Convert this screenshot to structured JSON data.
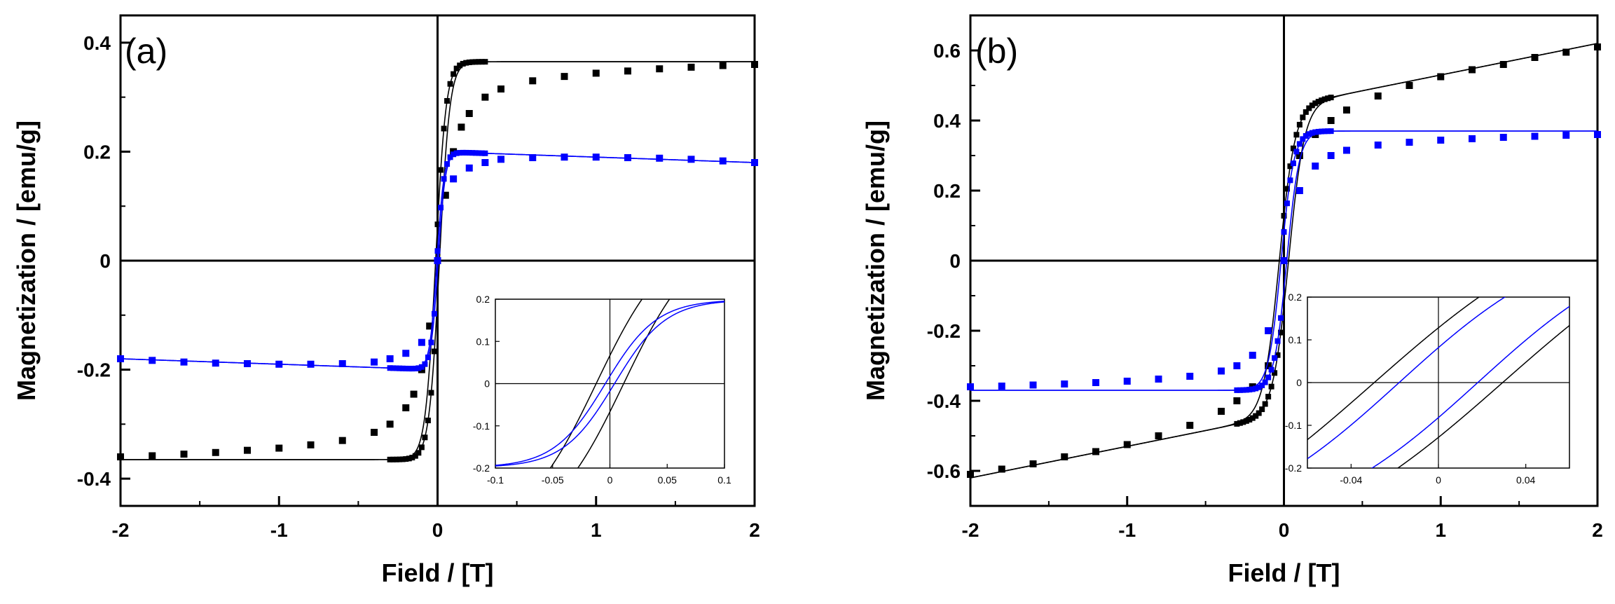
{
  "figure": {
    "panels": [
      {
        "id": "a",
        "label": "(a)"
      },
      {
        "id": "b",
        "label": "(b)"
      }
    ]
  },
  "colors": {
    "series1": "#000000",
    "series2": "#0000ff"
  },
  "chart_data": [
    {
      "panel": "(a)",
      "type": "line",
      "title": "",
      "xlabel": "Field / [T]",
      "ylabel": "Magnetization / [emu/g]",
      "xlim": [
        -2,
        2
      ],
      "ylim": [
        -0.45,
        0.45
      ],
      "xticks": [
        -2,
        -1,
        0,
        1,
        2
      ],
      "xtick_labels": [
        "-2",
        "-1",
        "0",
        "1",
        "2"
      ],
      "yticks": [
        -0.4,
        -0.2,
        0,
        0.2,
        0.4
      ],
      "ytick_labels": [
        "-0.4",
        "-0.2",
        "0",
        "0.2",
        "0.4"
      ],
      "series": [
        {
          "name": "black",
          "color": "#000000",
          "model": {
            "Ms": 0.365,
            "a": 0.065,
            "coercivity": 0.012
          },
          "x": [
            -2,
            -1.8,
            -1.6,
            -1.4,
            -1.2,
            -1.0,
            -0.8,
            -0.6,
            -0.4,
            -0.3,
            -0.2,
            -0.15,
            -0.1,
            -0.05,
            0,
            0.05,
            0.1,
            0.15,
            0.2,
            0.3,
            0.4,
            0.6,
            0.8,
            1.0,
            1.2,
            1.4,
            1.6,
            1.8,
            2.0
          ],
          "y": [
            -0.36,
            -0.358,
            -0.355,
            -0.352,
            -0.348,
            -0.344,
            -0.338,
            -0.33,
            -0.315,
            -0.3,
            -0.27,
            -0.245,
            -0.2,
            -0.12,
            0,
            0.12,
            0.2,
            0.245,
            0.27,
            0.3,
            0.315,
            0.33,
            0.338,
            0.344,
            0.348,
            0.352,
            0.355,
            0.358,
            0.36
          ]
        },
        {
          "name": "blue",
          "color": "#0000ff",
          "model": {
            "Ms": 0.2,
            "a": 0.045,
            "coercivity": 0.004,
            "tilt": -0.01
          },
          "x": [
            -2,
            -1.8,
            -1.6,
            -1.4,
            -1.2,
            -1.0,
            -0.8,
            -0.6,
            -0.4,
            -0.3,
            -0.2,
            -0.1,
            0,
            0.1,
            0.2,
            0.3,
            0.4,
            0.6,
            0.8,
            1.0,
            1.2,
            1.4,
            1.6,
            1.8,
            2.0
          ],
          "y": [
            -0.18,
            -0.183,
            -0.186,
            -0.188,
            -0.189,
            -0.19,
            -0.19,
            -0.189,
            -0.186,
            -0.18,
            -0.17,
            -0.15,
            0,
            0.15,
            0.17,
            0.18,
            0.186,
            0.189,
            0.19,
            0.19,
            0.189,
            0.188,
            0.186,
            0.183,
            0.18
          ]
        }
      ],
      "inset": {
        "xlim": [
          -0.1,
          0.1
        ],
        "ylim": [
          -0.2,
          0.2
        ],
        "xticks": [
          -0.1,
          -0.05,
          0,
          0.05,
          0.1
        ],
        "xtick_labels": [
          "-0.1",
          "-0.05",
          "0",
          "0.05",
          "0.1"
        ],
        "yticks": [
          -0.2,
          -0.1,
          0,
          0.1,
          0.2
        ],
        "ytick_labels": [
          "-0.2",
          "-0.1",
          "0",
          "0.1",
          "0.2"
        ],
        "description": "zoom of hysteresis near origin"
      }
    },
    {
      "panel": "(b)",
      "type": "line",
      "title": "",
      "xlabel": "Field / [T]",
      "ylabel": "Magnetization / [emu/g]",
      "xlim": [
        -2,
        2
      ],
      "ylim": [
        -0.7,
        0.7
      ],
      "xticks": [
        -2,
        -1,
        0,
        1,
        2
      ],
      "xtick_labels": [
        "-2",
        "-1",
        "0",
        "1",
        "2"
      ],
      "yticks": [
        -0.6,
        -0.4,
        -0.2,
        0,
        0.2,
        0.4,
        0.6
      ],
      "ytick_labels": [
        "-0.6",
        "-0.4",
        "-0.2",
        "0",
        "0.2",
        "0.4",
        "0.6"
      ],
      "series": [
        {
          "name": "black",
          "color": "#000000",
          "model": {
            "Ms": 0.44,
            "a": 0.1,
            "coercivity": 0.03,
            "tilt": 0.09
          },
          "x": [
            -2,
            -1.8,
            -1.6,
            -1.4,
            -1.2,
            -1.0,
            -0.8,
            -0.6,
            -0.4,
            -0.3,
            -0.2,
            -0.1,
            0,
            0.1,
            0.2,
            0.3,
            0.4,
            0.6,
            0.8,
            1.0,
            1.2,
            1.4,
            1.6,
            1.8,
            2.0
          ],
          "y": [
            -0.61,
            -0.595,
            -0.58,
            -0.56,
            -0.545,
            -0.525,
            -0.5,
            -0.47,
            -0.43,
            -0.4,
            -0.36,
            -0.3,
            0,
            0.3,
            0.36,
            0.4,
            0.43,
            0.47,
            0.5,
            0.525,
            0.545,
            0.56,
            0.58,
            0.595,
            0.61
          ]
        },
        {
          "name": "blue",
          "color": "#0000ff",
          "model": {
            "Ms": 0.37,
            "a": 0.08,
            "coercivity": 0.018
          },
          "x": [
            -2,
            -1.8,
            -1.6,
            -1.4,
            -1.2,
            -1.0,
            -0.8,
            -0.6,
            -0.4,
            -0.3,
            -0.2,
            -0.1,
            0,
            0.1,
            0.2,
            0.3,
            0.4,
            0.6,
            0.8,
            1.0,
            1.2,
            1.4,
            1.6,
            1.8,
            2.0
          ],
          "y": [
            -0.36,
            -0.358,
            -0.355,
            -0.352,
            -0.348,
            -0.344,
            -0.338,
            -0.33,
            -0.315,
            -0.3,
            -0.27,
            -0.2,
            0,
            0.2,
            0.27,
            0.3,
            0.315,
            0.33,
            0.338,
            0.344,
            0.348,
            0.352,
            0.355,
            0.358,
            0.36
          ]
        }
      ],
      "inset": {
        "xlim": [
          -0.06,
          0.06
        ],
        "ylim": [
          -0.2,
          0.2
        ],
        "xticks": [
          -0.04,
          0,
          0.04
        ],
        "xtick_labels": [
          "-0.04",
          "0",
          "0.04"
        ],
        "yticks": [
          -0.2,
          -0.1,
          0,
          0.1,
          0.2
        ],
        "ytick_labels": [
          "-0.2",
          "-0.1",
          "0",
          "0.1",
          "0.2"
        ],
        "description": "zoom of hysteresis near origin"
      }
    }
  ]
}
